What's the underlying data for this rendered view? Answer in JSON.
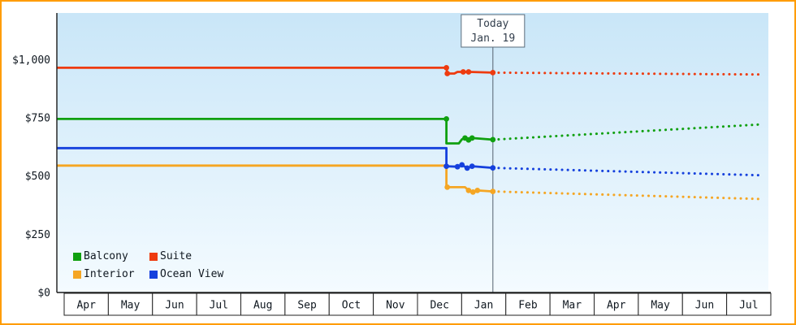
{
  "chart_data": {
    "type": "line",
    "title": "",
    "unit": "USD",
    "y_axis": {
      "max": 1200,
      "ticks": [
        {
          "value": 0,
          "label": "$0"
        },
        {
          "value": 250,
          "label": "$250"
        },
        {
          "value": 500,
          "label": "$500"
        },
        {
          "value": 750,
          "label": "$750"
        },
        {
          "value": 1000,
          "label": "$1,000"
        }
      ]
    },
    "x_axis": {
      "months": [
        "Apr",
        "May",
        "Jun",
        "Jul",
        "Aug",
        "Sep",
        "Oct",
        "Nov",
        "Dec",
        "Jan",
        "Feb",
        "Mar",
        "Apr",
        "May",
        "Jun",
        "Jul"
      ]
    },
    "today": {
      "x": 9.85,
      "label_line1": "Today",
      "label_line2": "Jan. 19"
    },
    "series": [
      {
        "id": "balcony",
        "name": "Balcony",
        "color": "#10a010",
        "solid": [
          [
            0,
            745
          ],
          [
            8.8,
            745
          ],
          [
            8.8,
            640
          ],
          [
            9.08,
            640
          ],
          [
            9.15,
            658
          ],
          [
            9.22,
            663
          ],
          [
            9.3,
            655
          ],
          [
            9.38,
            663
          ],
          [
            9.85,
            656
          ]
        ],
        "markers": [
          [
            8.8,
            745
          ],
          [
            9.22,
            663
          ],
          [
            9.3,
            655
          ],
          [
            9.38,
            663
          ],
          [
            9.85,
            656
          ]
        ],
        "forecast": [
          [
            9.85,
            656
          ],
          [
            15.95,
            722
          ]
        ]
      },
      {
        "id": "suite",
        "name": "Suite",
        "color": "#ee3b0f",
        "solid": [
          [
            0,
            965
          ],
          [
            8.8,
            965
          ],
          [
            8.82,
            940
          ],
          [
            8.98,
            940
          ],
          [
            9.05,
            947
          ],
          [
            9.32,
            947
          ],
          [
            9.85,
            944
          ]
        ],
        "markers": [
          [
            8.8,
            965
          ],
          [
            8.82,
            940
          ],
          [
            9.18,
            947
          ],
          [
            9.3,
            947
          ],
          [
            9.85,
            944
          ]
        ],
        "forecast": [
          [
            9.85,
            944
          ],
          [
            15.95,
            936
          ]
        ]
      },
      {
        "id": "interior",
        "name": "Interior",
        "color": "#f5a623",
        "solid": [
          [
            0,
            545
          ],
          [
            8.8,
            545
          ],
          [
            8.8,
            452
          ],
          [
            9.22,
            452
          ],
          [
            9.3,
            438
          ],
          [
            9.4,
            431
          ],
          [
            9.5,
            438
          ],
          [
            9.85,
            434
          ]
        ],
        "markers": [
          [
            8.82,
            452
          ],
          [
            9.3,
            438
          ],
          [
            9.4,
            431
          ],
          [
            9.5,
            438
          ],
          [
            9.85,
            434
          ]
        ],
        "forecast": [
          [
            9.85,
            434
          ],
          [
            15.95,
            401
          ]
        ]
      },
      {
        "id": "ocean-view",
        "name": "Ocean View",
        "color": "#1540dd",
        "solid": [
          [
            0,
            620
          ],
          [
            8.8,
            620
          ],
          [
            8.8,
            542
          ],
          [
            9.05,
            540
          ],
          [
            9.15,
            548
          ],
          [
            9.27,
            534
          ],
          [
            9.38,
            542
          ],
          [
            9.85,
            535
          ]
        ],
        "markers": [
          [
            8.8,
            542
          ],
          [
            9.05,
            540
          ],
          [
            9.15,
            548
          ],
          [
            9.27,
            534
          ],
          [
            9.38,
            542
          ],
          [
            9.85,
            535
          ]
        ],
        "forecast": [
          [
            9.85,
            535
          ],
          [
            15.95,
            503
          ]
        ]
      }
    ],
    "colors": {
      "frame_border": "#ff9c00",
      "plot_bg_top": "#c9e6f8",
      "plot_bg_bottom": "#f4fbff",
      "axis": "#1a1a1a",
      "month_cell_border": "#222222",
      "month_cell_bg": "#ffffff",
      "today_line": "#54616e",
      "today_box_border": "#5a6b7a",
      "label_text": "#101820",
      "today_text": "#333f4d"
    }
  }
}
